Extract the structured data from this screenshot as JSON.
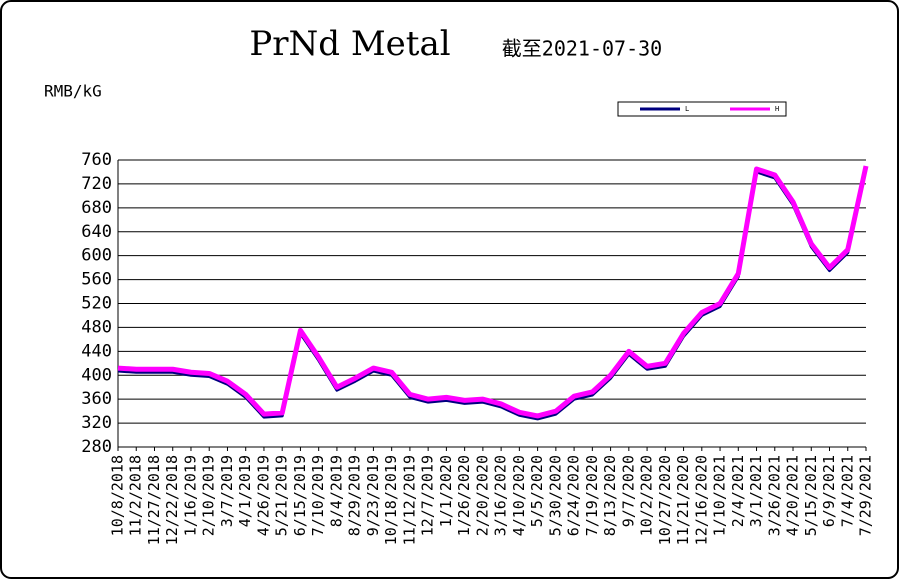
{
  "chart_data": {
    "type": "line",
    "title": "PrNd Metal",
    "subtitle": "截至2021-07-30",
    "y_label": "RMB/kG",
    "categories": [
      "10/8/2018",
      "11/2/2018",
      "11/27/2018",
      "12/22/2018",
      "1/16/2019",
      "2/10/2019",
      "3/7/2019",
      "4/1/2019",
      "4/26/2019",
      "5/21/2019",
      "6/15/2019",
      "7/10/2019",
      "8/4/2019",
      "8/29/2019",
      "9/23/2019",
      "10/18/2019",
      "11/12/2019",
      "12/7/2019",
      "1/1/2020",
      "1/26/2020",
      "2/20/2020",
      "3/16/2020",
      "4/10/2020",
      "5/5/2020",
      "5/30/2020",
      "6/24/2020",
      "7/19/2020",
      "8/13/2020",
      "9/7/2020",
      "10/2/2020",
      "10/27/2020",
      "11/21/2020",
      "12/16/2020",
      "1/10/2021",
      "2/4/2021",
      "3/1/2021",
      "3/26/2021",
      "4/20/2021",
      "5/15/2021",
      "6/9/2021",
      "7/4/2021",
      "7/29/2021"
    ],
    "series": [
      {
        "name": "L",
        "color": "#000080",
        "values": [
          407,
          405,
          405,
          405,
          400,
          398,
          385,
          363,
          330,
          332,
          470,
          425,
          375,
          390,
          407,
          400,
          363,
          355,
          358,
          353,
          355,
          347,
          333,
          327,
          335,
          360,
          367,
          395,
          435,
          410,
          415,
          465,
          500,
          515,
          565,
          740,
          730,
          685,
          615,
          575,
          605,
          745
        ]
      },
      {
        "name": "H",
        "color": "#ff00ff",
        "values": [
          412,
          410,
          410,
          410,
          405,
          403,
          390,
          368,
          335,
          337,
          475,
          430,
          380,
          395,
          412,
          405,
          368,
          360,
          363,
          358,
          360,
          352,
          338,
          332,
          340,
          365,
          372,
          400,
          440,
          415,
          420,
          470,
          505,
          520,
          570,
          745,
          735,
          690,
          620,
          580,
          610,
          750
        ]
      }
    ],
    "ylim": [
      280,
      760
    ],
    "yticks": [
      280,
      320,
      360,
      400,
      440,
      480,
      520,
      560,
      600,
      640,
      680,
      720,
      760
    ],
    "grid": true
  }
}
